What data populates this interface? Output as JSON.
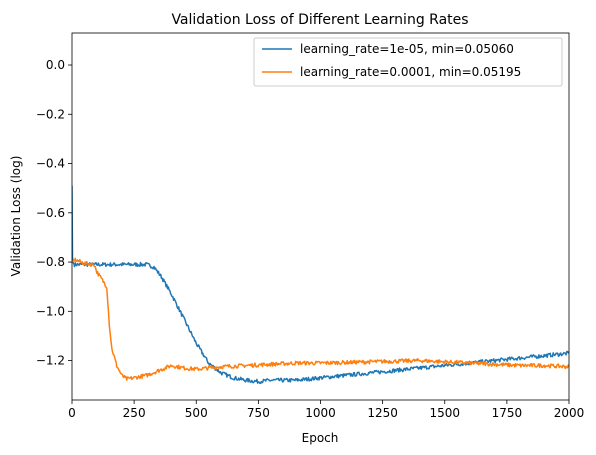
{
  "chart_data": {
    "type": "line",
    "title": "Validation Loss of Different Learning Rates",
    "xlabel": "Epoch",
    "ylabel": "Validation Loss (log)",
    "xlim": [
      0,
      2000
    ],
    "ylim": [
      -1.36,
      0.13
    ],
    "x_ticks": [
      0,
      250,
      500,
      750,
      1000,
      1250,
      1500,
      1750,
      2000
    ],
    "y_ticks": [
      0.0,
      -0.2,
      -0.4,
      -0.6,
      -0.8,
      -1.0,
      -1.2
    ],
    "y_tick_labels": [
      "0.0",
      "−0.2",
      "−0.4",
      "−0.6",
      "−0.8",
      "−1.0",
      "−1.2"
    ],
    "grid": false,
    "legend_position": "top-right",
    "series": [
      {
        "name": "learning_rate=1e-05, min=0.05060",
        "color": "#1f77b4",
        "x": [
          0,
          2,
          4,
          6,
          10,
          50,
          100,
          200,
          300,
          330,
          360,
          400,
          450,
          500,
          550,
          600,
          650,
          700,
          750,
          800,
          900,
          1000,
          1100,
          1200,
          1300,
          1400,
          1500,
          1600,
          1700,
          1800,
          1900,
          2000
        ],
        "y": [
          -0.49,
          -0.78,
          -0.8,
          -0.805,
          -0.81,
          -0.81,
          -0.81,
          -0.81,
          -0.81,
          -0.82,
          -0.86,
          -0.93,
          -1.03,
          -1.13,
          -1.21,
          -1.25,
          -1.27,
          -1.28,
          -1.285,
          -1.28,
          -1.28,
          -1.27,
          -1.26,
          -1.25,
          -1.24,
          -1.23,
          -1.22,
          -1.21,
          -1.2,
          -1.19,
          -1.18,
          -1.17
        ]
      },
      {
        "name": "learning_rate=0.0001, min=0.05195",
        "color": "#ff7f0e",
        "x": [
          0,
          10,
          50,
          90,
          100,
          120,
          140,
          150,
          160,
          180,
          200,
          220,
          250,
          300,
          350,
          400,
          450,
          500,
          550,
          600,
          700,
          800,
          900,
          1000,
          1200,
          1400,
          1500,
          1600,
          1700,
          1800,
          1900,
          2000
        ],
        "y": [
          -0.8,
          -0.79,
          -0.805,
          -0.81,
          -0.84,
          -0.87,
          -0.9,
          -1.05,
          -1.15,
          -1.22,
          -1.26,
          -1.275,
          -1.27,
          -1.26,
          -1.24,
          -1.22,
          -1.23,
          -1.235,
          -1.23,
          -1.225,
          -1.22,
          -1.215,
          -1.21,
          -1.21,
          -1.205,
          -1.2,
          -1.205,
          -1.21,
          -1.215,
          -1.22,
          -1.22,
          -1.225
        ]
      }
    ]
  }
}
